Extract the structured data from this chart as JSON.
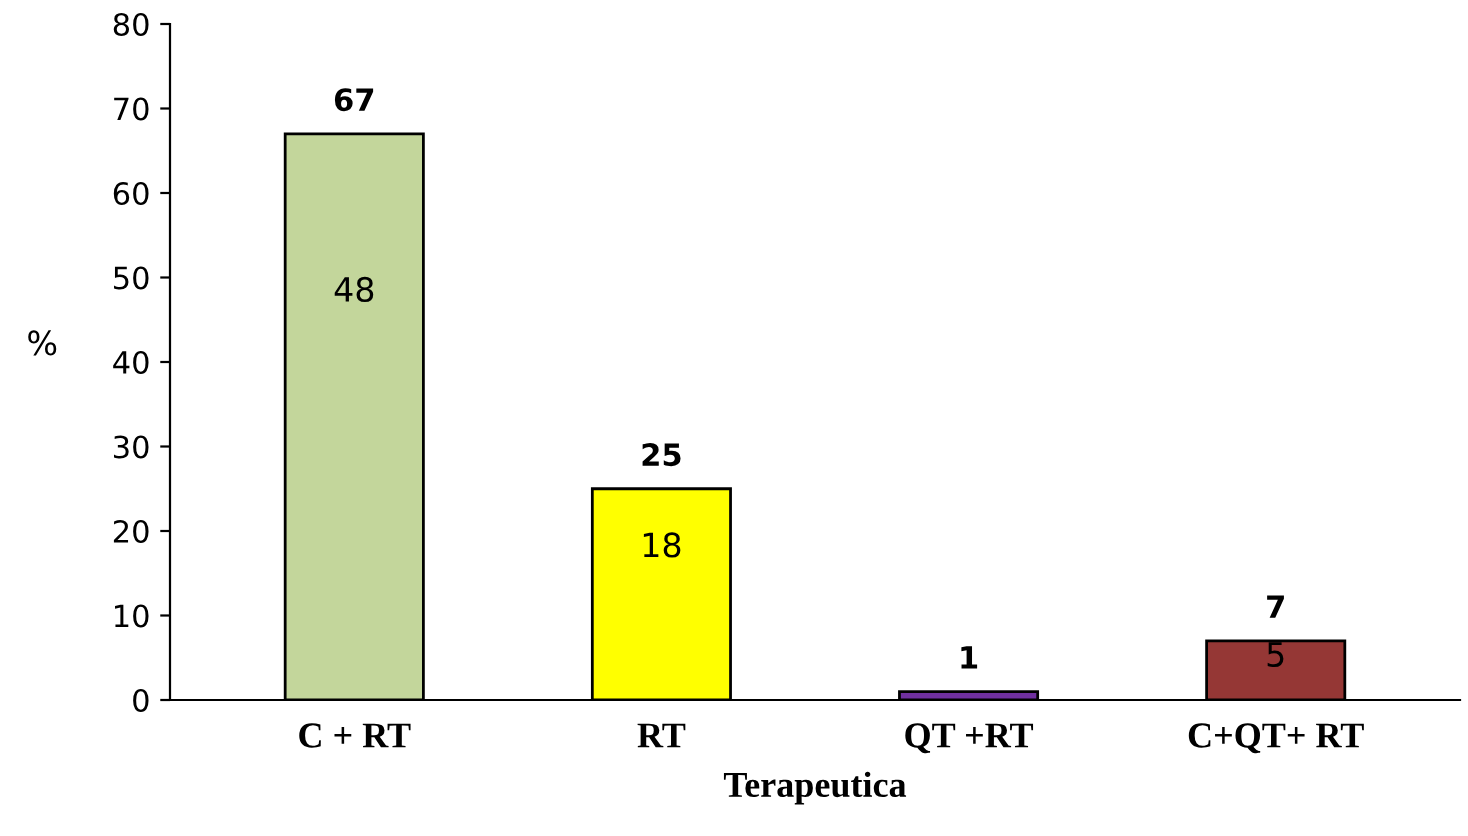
{
  "chart_data": {
    "type": "bar",
    "xlabel": "Terapeutica",
    "ylabel": "%",
    "categories": [
      "C + RT",
      "RT",
      "QT +RT",
      "C+QT+ RT"
    ],
    "values": [
      67,
      25,
      1,
      7
    ],
    "colors": [
      "#c3d69b",
      "#ffff00",
      "#7030a0",
      "#953735"
    ],
    "ylim": [
      0,
      80
    ],
    "yticks": [
      0,
      10,
      20,
      30,
      40,
      50,
      60,
      70,
      80
    ],
    "grid": false,
    "data_labels": true,
    "annotations": [
      "48",
      "18",
      "5"
    ]
  }
}
